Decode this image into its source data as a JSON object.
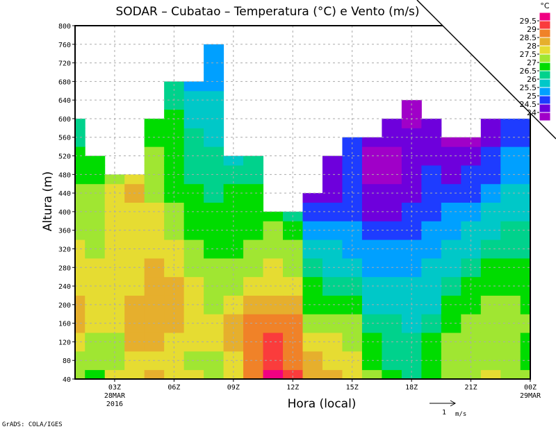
{
  "chart_data": {
    "type": "heatmap",
    "title": "SODAR – Cubatao – Temperatura (°C) e Vento (m/s)",
    "xlabel": "Hora (local)",
    "ylabel": "Altura (m)",
    "x_hours": [
      1,
      2,
      3,
      4,
      5,
      6,
      7,
      8,
      9,
      10,
      11,
      12,
      13,
      14,
      15,
      16,
      17,
      18,
      19,
      20,
      21,
      22,
      23,
      24
    ],
    "xlim": [
      1,
      24
    ],
    "ylim": [
      40,
      800
    ],
    "heights": [
      40,
      80,
      120,
      160,
      200,
      240,
      280,
      320,
      360,
      400,
      440,
      480,
      520,
      560,
      600,
      640,
      680,
      720,
      760,
      800
    ],
    "x_ticks": [
      {
        "hour": 3,
        "label": "03Z",
        "sub1": "28MAR",
        "sub2": "2016"
      },
      {
        "hour": 6,
        "label": "06Z"
      },
      {
        "hour": 9,
        "label": "09Z"
      },
      {
        "hour": 12,
        "label": "12Z"
      },
      {
        "hour": 15,
        "label": "15Z"
      },
      {
        "hour": 18,
        "label": "18Z"
      },
      {
        "hour": 21,
        "label": "21Z"
      },
      {
        "hour": 24,
        "label": "00Z",
        "sub1": "29MAR"
      }
    ],
    "y_ticks": [
      "40",
      "80",
      "120",
      "160",
      "200",
      "240",
      "280",
      "320",
      "360",
      "400",
      "440",
      "480",
      "520",
      "560",
      "600",
      "640",
      "680",
      "720",
      "760",
      "800"
    ],
    "grid": true,
    "temperature": [
      [
        27.25,
        27.25,
        27.75,
        28.25,
        28.25,
        27.75,
        27.75,
        27.75,
        27.25,
        27.25,
        27.25,
        26.75,
        26.75,
        26.25,
        26.25
      ],
      [
        26.75,
        27.25,
        27.25,
        27.75,
        27.75,
        27.75,
        27.75,
        27.25,
        27.25,
        27.25,
        27.25,
        26.75,
        26.75
      ],
      [
        27.75,
        27.25,
        27.25,
        27.75,
        27.75,
        27.75,
        27.75,
        27.75,
        27.75,
        27.75,
        27.75,
        27.25
      ],
      [
        27.75,
        27.75,
        28.25,
        28.25,
        28.25,
        27.75,
        27.75,
        27.75,
        27.75,
        27.75,
        28.25,
        27.75
      ],
      [
        28.25,
        27.75,
        28.25,
        28.25,
        28.25,
        28.25,
        28.25,
        27.75,
        27.75,
        27.75,
        27.25,
        27.25,
        27.25,
        26.75,
        26.75
      ],
      [
        27.75,
        27.75,
        27.75,
        28.25,
        28.25,
        28.25,
        27.75,
        27.75,
        27.25,
        27.25,
        26.75,
        26.75,
        26.75,
        26.75,
        26.75,
        26.25,
        26.25
      ],
      [
        27.75,
        27.25,
        27.75,
        27.75,
        27.75,
        27.75,
        27.25,
        27.25,
        26.75,
        26.75,
        26.75,
        26.25,
        26.25,
        26.25,
        25.75,
        25.75,
        25.25
      ],
      [
        27.25,
        27.25,
        27.75,
        27.75,
        27.25,
        27.25,
        27.25,
        26.75,
        26.75,
        26.75,
        26.25,
        26.25,
        26.25,
        25.75,
        25.75,
        25.75,
        25.25,
        25.25,
        25.25
      ],
      [
        27.75,
        27.75,
        28.25,
        28.25,
        27.75,
        27.25,
        27.25,
        26.75,
        26.75,
        26.75,
        26.75,
        26.25,
        25.75
      ],
      [
        28.75,
        28.75,
        28.75,
        28.75,
        28.25,
        27.75,
        27.25,
        27.25,
        26.75,
        26.75,
        26.75,
        26.25,
        26.25
      ],
      [
        29.75,
        29.25,
        29.25,
        28.75,
        28.25,
        27.75,
        27.75,
        27.25,
        27.25,
        26.75
      ],
      [
        29.25,
        28.75,
        28.75,
        28.75,
        28.25,
        27.75,
        27.25,
        27.25,
        26.75,
        26.25
      ],
      [
        28.25,
        28.25,
        27.75,
        27.25,
        26.75,
        26.75,
        26.25,
        25.75,
        25.25,
        24.75,
        24.25
      ],
      [
        28.25,
        27.75,
        27.75,
        27.25,
        26.75,
        26.25,
        25.75,
        25.75,
        25.25,
        24.75,
        24.25,
        24.25,
        24.25
      ],
      [
        27.75,
        27.75,
        27.25,
        27.25,
        26.75,
        26.25,
        25.75,
        25.25,
        25.25,
        24.75,
        24.75,
        24.75,
        24.75,
        24.75
      ],
      [
        27.25,
        26.75,
        26.75,
        26.25,
        25.75,
        25.75,
        25.25,
        25.25,
        24.75,
        24.25,
        24.25,
        23.75,
        23.75,
        24.25
      ],
      [
        26.75,
        26.25,
        26.25,
        26.25,
        25.75,
        25.75,
        25.25,
        25.25,
        24.75,
        24.25,
        24.25,
        23.75,
        23.75,
        24.25,
        24.25
      ],
      [
        26.25,
        26.25,
        26.25,
        25.75,
        25.75,
        25.75,
        25.25,
        25.25,
        24.75,
        24.75,
        24.25,
        24.25,
        24.25,
        24.25,
        23.75,
        23.75
      ],
      [
        26.75,
        26.75,
        26.75,
        26.25,
        25.75,
        25.75,
        25.75,
        25.25,
        25.25,
        24.75,
        24.75,
        24.75,
        24.25,
        24.25,
        24.25
      ],
      [
        27.25,
        27.25,
        27.25,
        26.75,
        26.75,
        26.25,
        25.75,
        25.75,
        25.25,
        25.25,
        24.75,
        24.25,
        24.25,
        23.75
      ],
      [
        27.25,
        27.25,
        27.25,
        27.25,
        26.75,
        26.75,
        26.25,
        25.75,
        25.75,
        25.25,
        24.75,
        24.75,
        24.25,
        23.75
      ],
      [
        27.75,
        27.25,
        27.25,
        27.25,
        27.25,
        26.75,
        26.75,
        26.25,
        25.75,
        25.75,
        25.25,
        24.75,
        24.75,
        24.25,
        24.25
      ],
      [
        27.25,
        27.25,
        27.25,
        27.25,
        27.25,
        26.75,
        26.75,
        26.25,
        26.25,
        25.75,
        25.75,
        25.25,
        25.25,
        24.75,
        24.75
      ],
      [
        27.25,
        26.75,
        26.75,
        27.25,
        26.75,
        26.75,
        26.75,
        26.25,
        26.25,
        25.75,
        25.75,
        25.25,
        25.25,
        24.75,
        24.75
      ]
    ],
    "legend": {
      "unit": "°C",
      "levels": [
        "24",
        "24.5",
        "25",
        "25.5",
        "26",
        "26.5",
        "27",
        "27.5",
        "28",
        "28.5",
        "29",
        "29.5"
      ],
      "colors": [
        "#a000c8",
        "#6e00dc",
        "#1e3cff",
        "#00a0ff",
        "#00c8c8",
        "#00d28c",
        "#00dc00",
        "#a0e632",
        "#e6dc32",
        "#e6af2d",
        "#f08228",
        "#fa3c3c",
        "#f00082"
      ]
    },
    "vector_reference": {
      "value": "1",
      "unit": "m/s"
    }
  },
  "footer": "GrADS: COLA/IGES"
}
